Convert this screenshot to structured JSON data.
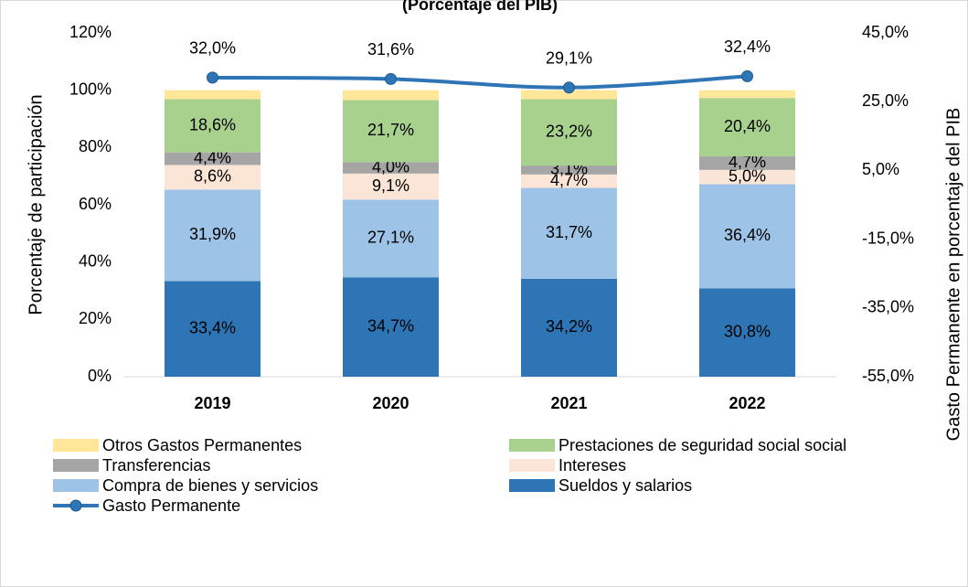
{
  "chart_data": {
    "type": "bar",
    "stacked": true,
    "title": "(Porcentaje del PIB)",
    "ylabel": "Porcentaje de participación",
    "y2label": "Gasto Permanente en porcentaje del PIB",
    "categories": [
      "2019",
      "2020",
      "2021",
      "2022"
    ],
    "ylim": [
      0,
      120
    ],
    "yticks": [
      {
        "value": 0,
        "label": "0%"
      },
      {
        "value": 20,
        "label": "20%"
      },
      {
        "value": 40,
        "label": "40%"
      },
      {
        "value": 60,
        "label": "60%"
      },
      {
        "value": 80,
        "label": "80%"
      },
      {
        "value": 100,
        "label": "100%"
      },
      {
        "value": 120,
        "label": "120%"
      }
    ],
    "y2lim": [
      -55,
      45
    ],
    "y2ticks": [
      {
        "value": -55,
        "label": "-55,0%"
      },
      {
        "value": -35,
        "label": "-35,0%"
      },
      {
        "value": -15,
        "label": "-15,0%"
      },
      {
        "value": 5,
        "label": "5,0%"
      },
      {
        "value": 25,
        "label": "25,0%"
      },
      {
        "value": 45,
        "label": "45,0%"
      }
    ],
    "series": [
      {
        "name": "Sueldos y salarios",
        "color": "#2e75b6",
        "values": [
          33.4,
          34.7,
          34.2,
          30.8
        ],
        "value_labels": [
          "33,4%",
          "34,7%",
          "34,2%",
          "30,8%"
        ]
      },
      {
        "name": "Compra de bienes y servicios",
        "color": "#9dc3e6",
        "values": [
          31.9,
          27.1,
          31.7,
          36.4
        ],
        "value_labels": [
          "31,9%",
          "27,1%",
          "31,7%",
          "36,4%"
        ]
      },
      {
        "name": "Intereses",
        "color": "#fbe5d6",
        "values": [
          8.6,
          9.1,
          4.7,
          5.0
        ],
        "value_labels": [
          "8,6%",
          "9,1%",
          "4,7%",
          "5,0%"
        ]
      },
      {
        "name": "Transferencias",
        "color": "#a5a5a5",
        "values": [
          4.4,
          4.0,
          3.1,
          4.7
        ],
        "value_labels": [
          "4,4%",
          "4,0%",
          "3,1%",
          "4,7%"
        ]
      },
      {
        "name": "Prestaciones de seguridad social social",
        "color": "#a9d18e",
        "values": [
          18.6,
          21.7,
          23.2,
          20.4
        ],
        "value_labels": [
          "18,6%",
          "21,7%",
          "23,2%",
          "20,4%"
        ]
      },
      {
        "name": "Otros Gastos Permanentes",
        "color": "#ffe699",
        "values": [
          3.1,
          3.4,
          3.1,
          2.7
        ]
      },
      {
        "name": "Gasto Permanente",
        "type": "line",
        "axis": "y2",
        "color": "#2e75b6",
        "values": [
          32.0,
          31.6,
          29.1,
          32.4
        ],
        "value_labels": [
          "32,0%",
          "31,6%",
          "29,1%",
          "32,4%"
        ]
      }
    ]
  }
}
